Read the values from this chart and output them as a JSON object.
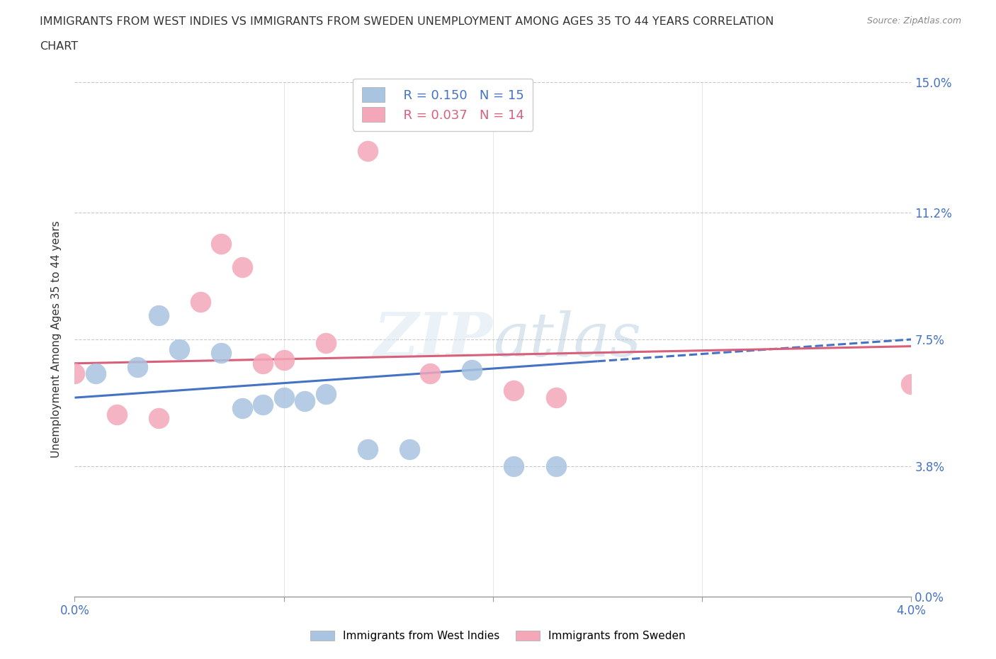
{
  "title_line1": "IMMIGRANTS FROM WEST INDIES VS IMMIGRANTS FROM SWEDEN UNEMPLOYMENT AMONG AGES 35 TO 44 YEARS CORRELATION",
  "title_line2": "CHART",
  "source": "Source: ZipAtlas.com",
  "ylabel": "Unemployment Among Ages 35 to 44 years",
  "watermark": "ZIPatlas",
  "west_indies_x": [
    0.001,
    0.003,
    0.004,
    0.005,
    0.007,
    0.008,
    0.009,
    0.01,
    0.011,
    0.012,
    0.014,
    0.016,
    0.019,
    0.021,
    0.023
  ],
  "west_indies_y": [
    0.065,
    0.067,
    0.082,
    0.072,
    0.071,
    0.055,
    0.056,
    0.058,
    0.057,
    0.059,
    0.043,
    0.043,
    0.066,
    0.038,
    0.038
  ],
  "sweden_x": [
    0.0,
    0.002,
    0.004,
    0.006,
    0.007,
    0.008,
    0.009,
    0.01,
    0.012,
    0.014,
    0.017,
    0.021,
    0.023,
    0.04
  ],
  "sweden_y": [
    0.065,
    0.053,
    0.052,
    0.086,
    0.103,
    0.096,
    0.068,
    0.069,
    0.074,
    0.13,
    0.065,
    0.06,
    0.058,
    0.062
  ],
  "west_indies_color": "#a8c4e0",
  "sweden_color": "#f4a7b9",
  "west_indies_line_color": "#4472c4",
  "sweden_line_color": "#d9607a",
  "R_west_indies": 0.15,
  "N_west_indies": 15,
  "R_sweden": 0.037,
  "N_sweden": 14,
  "xlim": [
    0.0,
    0.04
  ],
  "ylim": [
    0.0,
    0.15
  ],
  "yticks": [
    0.0,
    0.038,
    0.075,
    0.112,
    0.15
  ],
  "ytick_labels": [
    "0.0%",
    "3.8%",
    "7.5%",
    "11.2%",
    "15.0%"
  ],
  "xtick_positions": [
    0.0,
    0.01,
    0.02,
    0.03,
    0.04
  ],
  "xtick_labels_bottom": [
    "0.0%",
    "",
    "",
    "",
    "4.0%"
  ],
  "trend_wi_x0": 0.0,
  "trend_wi_x1": 0.04,
  "trend_wi_y0": 0.058,
  "trend_wi_y1": 0.075,
  "trend_wi_solid_end": 0.025,
  "trend_sw_x0": 0.0,
  "trend_sw_x1": 0.04,
  "trend_sw_y0": 0.068,
  "trend_sw_y1": 0.073,
  "background_color": "#ffffff",
  "grid_color": "#bbbbbb"
}
